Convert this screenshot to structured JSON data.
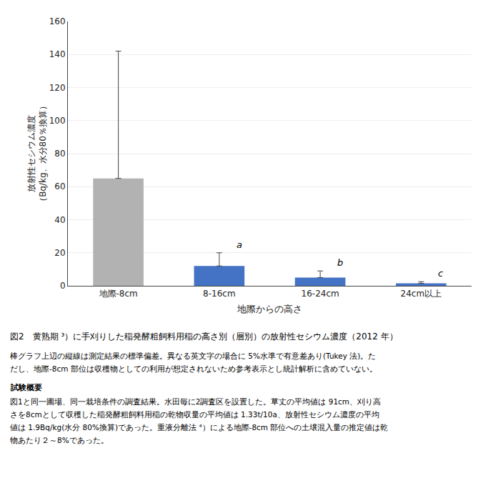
{
  "chart_data": {
    "type": "bar",
    "categories": [
      "地際-8cm",
      "8-16cm",
      "16-24cm",
      "24cm以上"
    ],
    "values": [
      65,
      12,
      5,
      1.5
    ],
    "error_up": [
      77,
      8,
      4,
      1.0
    ],
    "colors": [
      "#b2b2b2",
      "#4472c4",
      "#4472c4",
      "#4472c4"
    ],
    "annotations": [
      {
        "category": "8-16cm",
        "text": "a"
      },
      {
        "category": "16-24cm",
        "text": "b"
      },
      {
        "category": "24cm以上",
        "text": "c"
      }
    ],
    "ylabel": [
      "放射性セシウム濃度",
      "（Bq/kg、水分80％換算）"
    ],
    "xlabel": "地際からの高さ",
    "ylim": [
      0,
      160
    ],
    "yticks": [
      0,
      20,
      40,
      60,
      80,
      100,
      120,
      140,
      160
    ],
    "grid": true,
    "caption": "図2　黄熟期 ³）に手刈りした稲発酵粗飼料用稲の高さ別（層別）の放射性セシウム濃度（2012 年）",
    "notes": [
      "棒グラフ上辺の縦線は測定結果の標準偏差。異なる英文字の場合に 5%水準で有意差あり(Tukey 法)。た",
      "だし、地際-8cm 部位は収穫物としての利用が想定されないため参考表示とし統計解析に含めていない。"
    ],
    "section_title": "試験概要",
    "body": [
      "図1と同一圃場、同一栽培条件の調査結果。水田毎に2調査区を設置した。草丈の平均値は 91cm、刈り高",
      "さを8cmとして収穫した稲発酵粗飼料用稲の乾物収量の平均値は 1.33t/10a、放射性セシウム濃度の平均",
      "値は 1.9Bq/kg(水分 80%換算)であった。重液分離法 ⁴）による地際-8cm 部位への土壌混入量の推定値は乾",
      "物あたり２～8%であった。"
    ]
  }
}
